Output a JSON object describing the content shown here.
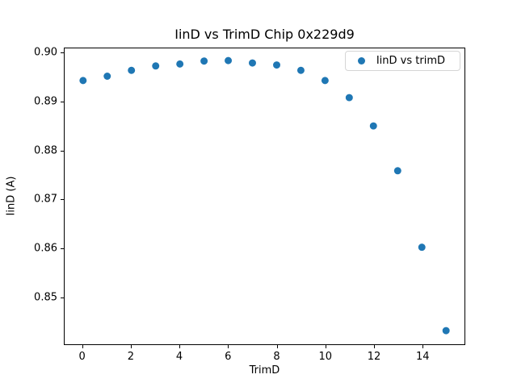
{
  "chart_data": {
    "type": "scatter",
    "title": "IinD vs TrimD Chip 0x229d9",
    "xlabel": "TrimD",
    "ylabel": "IinD (A)",
    "legend_label": "IinD vs trimD",
    "legend_position": "upper right",
    "grid": false,
    "marker_color": "#1f77b4",
    "x": [
      0,
      1,
      2,
      3,
      4,
      5,
      6,
      7,
      8,
      9,
      10,
      11,
      12,
      13,
      14,
      15
    ],
    "y": [
      0.8944,
      0.8953,
      0.8965,
      0.8974,
      0.8978,
      0.8984,
      0.8985,
      0.898,
      0.8976,
      0.8965,
      0.8944,
      0.8909,
      0.8851,
      0.8759,
      0.8602,
      0.8431
    ],
    "xlim": [
      -0.75,
      15.75
    ],
    "ylim": [
      0.8403,
      0.901
    ],
    "xticks": [
      0,
      2,
      4,
      6,
      8,
      10,
      12,
      14
    ],
    "yticks": [
      0.85,
      0.86,
      0.87,
      0.88,
      0.89,
      0.9
    ],
    "ytick_decimals": 2
  }
}
